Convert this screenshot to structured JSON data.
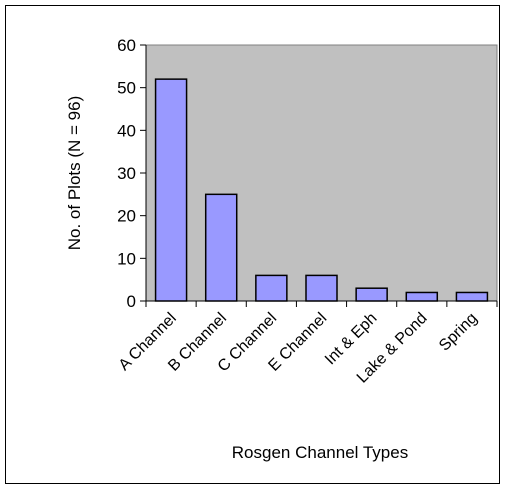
{
  "chart_data": {
    "type": "bar",
    "title": "",
    "xlabel": "Rosgen Channel Types",
    "ylabel": "No. of Plots (N = 96)",
    "categories": [
      "A Channel",
      "B Channel",
      "C Channel",
      "E Channel",
      "Int & Eph",
      "Lake & Pond",
      "Spring"
    ],
    "values": [
      52,
      25,
      6,
      6,
      3,
      2,
      2
    ],
    "ylim": [
      0,
      60
    ],
    "yticks": [
      0,
      10,
      20,
      30,
      40,
      50,
      60
    ],
    "grid": false,
    "legend": "none",
    "colors": {
      "bar_fill": "#9999FF",
      "bar_stroke": "#000000",
      "plot_background": "#C0C0C0",
      "axis": "#000000"
    }
  }
}
